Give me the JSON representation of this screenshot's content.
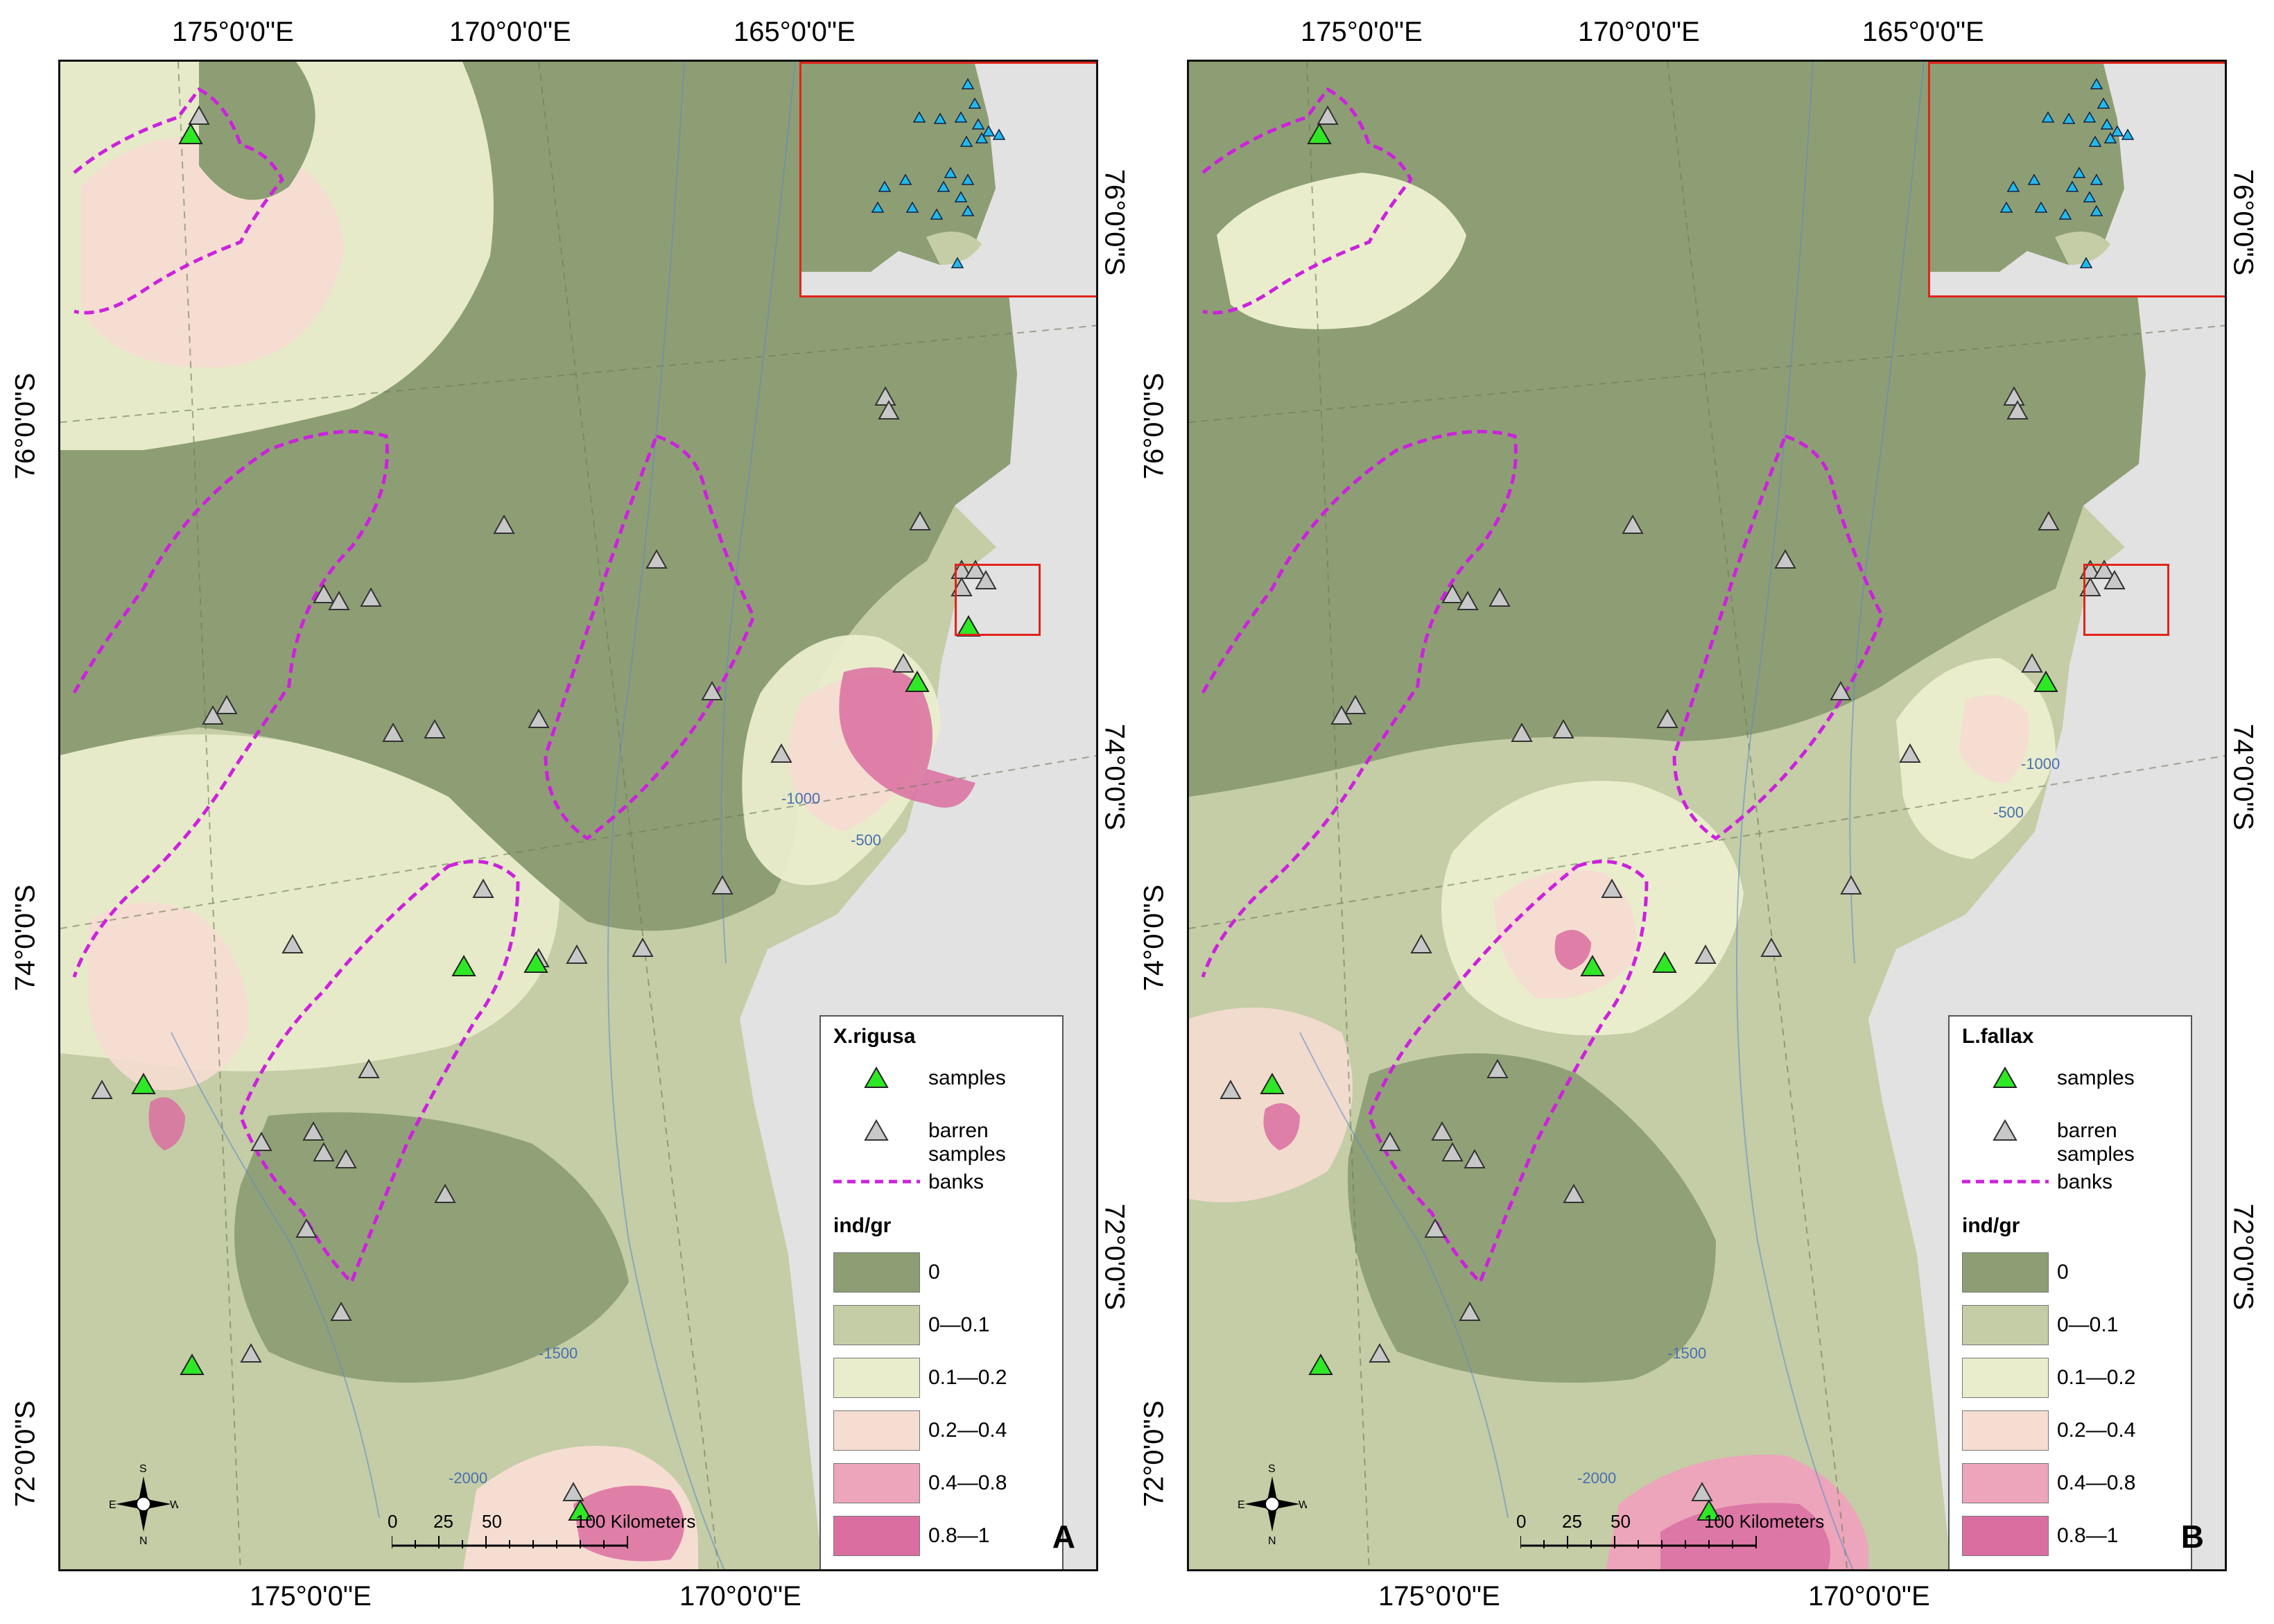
{
  "colors": {
    "class0": "#8e9e74",
    "class1": "#c4cda6",
    "class2": "#eaedcc",
    "class3": "#f6ddd2",
    "class4": "#eca5ba",
    "class5": "#db6ea1",
    "banks": "#cc22dd",
    "sample": "#2ee826",
    "barren": "#c8c8c8",
    "inset_point": "#22b9ea",
    "frame_red": "#e2231a",
    "land": "#e2e2e2"
  },
  "axes": {
    "top_lon_labels": [
      "175°0'0\"E",
      "170°0'0\"E",
      "165°0'0\"E"
    ],
    "bottom_lon_labels": [
      "175°0'0\"E",
      "170°0'0\"E"
    ],
    "left_lat_labels": [
      "76°0'0\"S",
      "74°0'0\"S",
      "72°0'0\"S"
    ],
    "right_lat_labels": [
      "76°0'0\"S",
      "74°0'0\"S",
      "72°0'0\"S"
    ]
  },
  "legend_common": {
    "samples": "samples",
    "barren": "barren samples",
    "banks": "banks",
    "unit_title": "ind/gr",
    "classes": [
      "0",
      "0—0.1",
      "0.1—0.2",
      "0.2—0.4",
      "0.4—0.8",
      "0.8—1"
    ]
  },
  "scale": {
    "ticks": [
      "0",
      "25",
      "50",
      "100 Kilometers"
    ]
  },
  "compass": {
    "n": "N",
    "s": "S",
    "e": "E",
    "w": "W"
  },
  "contours": [
    "-500",
    "-1000",
    "-1500",
    "-2000"
  ],
  "panels": [
    {
      "letter": "A",
      "species": "X.rigusa"
    },
    {
      "letter": "B",
      "species": "L.fallax"
    }
  ]
}
